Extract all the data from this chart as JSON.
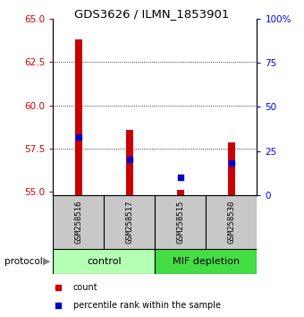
{
  "title": "GDS3626 / ILMN_1853901",
  "samples": [
    "GSM258516",
    "GSM258517",
    "GSM258515",
    "GSM258530"
  ],
  "red_tops": [
    63.8,
    58.6,
    55.1,
    57.85
  ],
  "blue_pcts": [
    33,
    20,
    10,
    18
  ],
  "ylim_left": [
    54.8,
    65.0
  ],
  "yticks_left": [
    55,
    57.5,
    60,
    62.5,
    65
  ],
  "yticks_right": [
    0,
    25,
    50,
    75,
    100
  ],
  "ylim_right": [
    0,
    100
  ],
  "bar_width": 0.15,
  "red_color": "#cc0000",
  "blue_color": "#0000cc",
  "gray_color": "#c8c8c8",
  "control_color": "#b3ffb3",
  "mif_color": "#44dd44",
  "protocol_label": "protocol",
  "legend_red": "count",
  "legend_blue": "percentile rank within the sample",
  "group_info": [
    {
      "xmin": -0.5,
      "xmax": 1.5,
      "label": "control",
      "color": "#b3ffb3"
    },
    {
      "xmin": 1.5,
      "xmax": 3.5,
      "label": "MIF depletion",
      "color": "#44dd44"
    }
  ]
}
